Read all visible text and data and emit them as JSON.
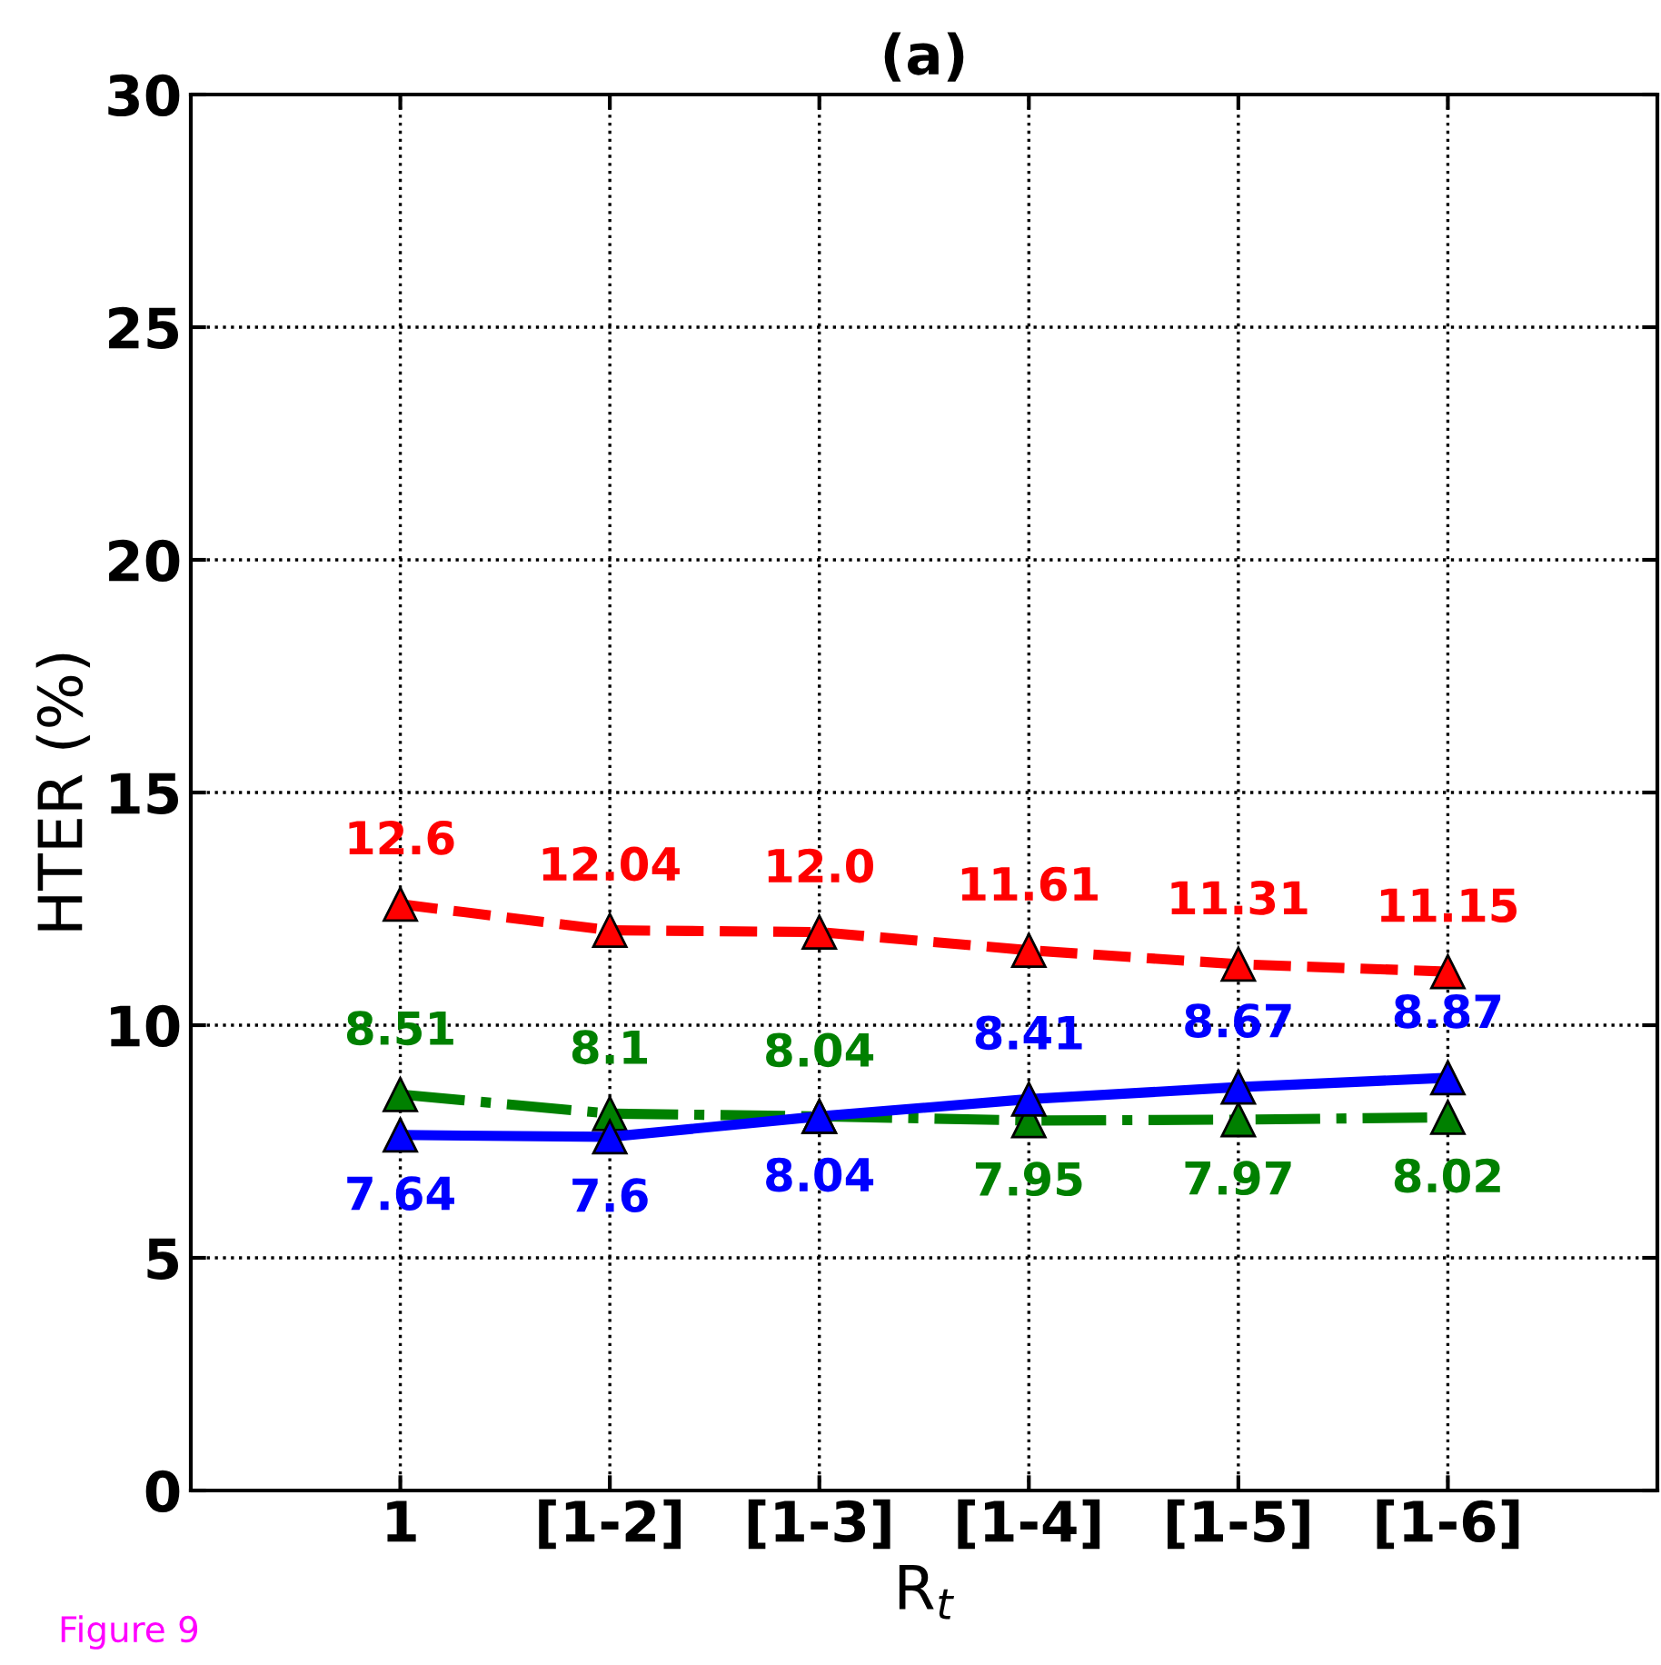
{
  "chart_data": {
    "type": "line",
    "title": "(a)",
    "xlabel": "R$_{t}$",
    "ylabel": "HTER (%)",
    "categories": [
      "1",
      "[1-2]",
      "[1-3]",
      "[1-4]",
      "[1-5]",
      "[1-6]"
    ],
    "series": [
      {
        "color": "#ff0000",
        "line_style": "dashed",
        "values": [
          12.6,
          12.04,
          12.0,
          11.61,
          11.31,
          11.15
        ],
        "value_labels": [
          "12.6",
          "12.04",
          "12.0",
          "11.61",
          "11.31",
          "11.15"
        ]
      },
      {
        "color": "#008000",
        "line_style": "dotted",
        "values": [
          8.51,
          8.1,
          8.04,
          7.95,
          7.97,
          8.02
        ],
        "value_labels": [
          "8.51",
          "8.1",
          "8.04",
          "7.95",
          "7.97",
          "8.02"
        ]
      },
      {
        "color": "#0000ff",
        "line_style": "solid",
        "values": [
          7.64,
          7.6,
          8.04,
          8.41,
          8.67,
          8.87
        ],
        "value_labels": [
          "7.64",
          "7.6",
          "8.04",
          "8.41",
          "8.67",
          "8.87"
        ]
      }
    ],
    "ylim": [
      0,
      30
    ],
    "yticks": [
      0,
      5,
      10,
      15,
      20,
      25,
      30
    ],
    "grid": true,
    "marker": "triangle",
    "annotations": [
      "Figure 9"
    ]
  }
}
